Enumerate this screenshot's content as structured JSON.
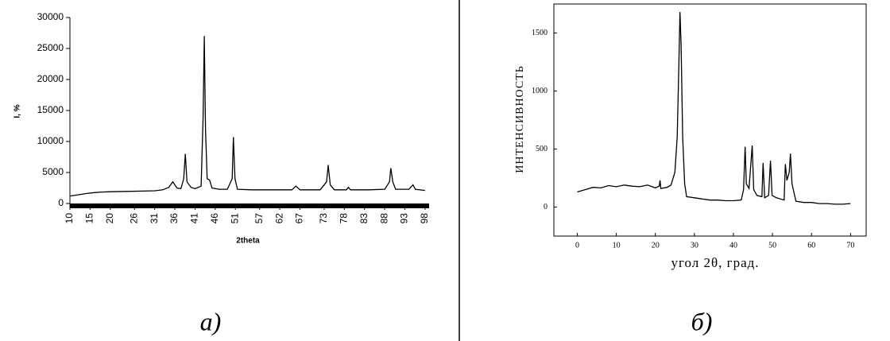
{
  "chart_data": [
    {
      "type": "line",
      "caption": "а)",
      "x_label": "2theta",
      "y_label": "I, %",
      "color": "#000000",
      "xlim": [
        10,
        99
      ],
      "ylim": [
        0,
        30000
      ],
      "xticks": [
        10,
        15,
        20,
        26,
        31,
        36,
        41,
        46,
        51,
        57,
        62,
        67,
        73,
        78,
        83,
        88,
        93,
        98
      ],
      "yticks": [
        0,
        5000,
        10000,
        15000,
        20000,
        25000,
        30000
      ],
      "x": [
        10,
        12,
        14,
        16,
        18,
        20,
        24,
        28,
        31,
        33,
        34.5,
        35.5,
        36.5,
        37.5,
        38.2,
        38.6,
        39,
        40,
        41,
        42.5,
        43,
        43.3,
        43.6,
        44,
        44.6,
        45.2,
        47,
        49,
        50.2,
        50.5,
        50.9,
        51.5,
        55,
        60,
        65,
        66,
        67,
        72,
        73.6,
        74,
        74.5,
        75.5,
        78.5,
        79,
        79.5,
        84,
        88,
        89.2,
        89.5,
        90,
        90.7,
        94,
        95,
        95.6,
        98
      ],
      "values": [
        1200,
        1400,
        1600,
        1750,
        1850,
        1900,
        1950,
        2000,
        2050,
        2200,
        2600,
        3500,
        2500,
        2400,
        4000,
        8000,
        3500,
        2600,
        2400,
        2800,
        14000,
        27000,
        12000,
        4000,
        3800,
        2500,
        2300,
        2300,
        4000,
        10700,
        4000,
        2300,
        2200,
        2200,
        2200,
        2800,
        2200,
        2200,
        3500,
        6200,
        3000,
        2200,
        2200,
        2600,
        2200,
        2200,
        2300,
        3500,
        5700,
        3500,
        2300,
        2300,
        3000,
        2300,
        2100
      ]
    },
    {
      "type": "line",
      "caption": "б)",
      "x_label": "угол 2θ, град.",
      "y_label": "ИНТЕНСИВНОСТЬ",
      "color": "#000000",
      "xlim": [
        -6,
        74
      ],
      "ylim": [
        -250,
        1750
      ],
      "xticks": [
        0,
        10,
        20,
        30,
        40,
        50,
        60,
        70
      ],
      "yticks": [
        0,
        500,
        1000,
        1500
      ],
      "x": [
        0,
        2,
        4,
        6,
        8,
        10,
        12,
        14,
        16,
        18,
        20,
        21,
        21.2,
        21.4,
        23,
        24,
        25,
        25.6,
        26,
        26.3,
        26.6,
        27,
        27.5,
        28,
        30,
        32,
        34,
        36,
        38,
        40,
        42,
        42.6,
        43,
        43.3,
        44,
        44.8,
        45.2,
        46,
        47.3,
        47.6,
        48,
        49,
        49.5,
        49.9,
        51,
        53,
        53.3,
        53.7,
        54.3,
        54.6,
        55,
        56,
        58,
        60,
        62,
        64,
        66,
        68,
        70
      ],
      "values": [
        130,
        150,
        170,
        165,
        185,
        175,
        190,
        180,
        175,
        190,
        165,
        180,
        230,
        160,
        170,
        190,
        300,
        600,
        1200,
        1680,
        1400,
        600,
        200,
        90,
        80,
        70,
        60,
        60,
        55,
        55,
        60,
        150,
        520,
        200,
        160,
        530,
        150,
        100,
        90,
        380,
        80,
        100,
        400,
        100,
        80,
        60,
        370,
        230,
        300,
        460,
        200,
        50,
        40,
        40,
        30,
        30,
        25,
        25,
        30
      ]
    }
  ]
}
